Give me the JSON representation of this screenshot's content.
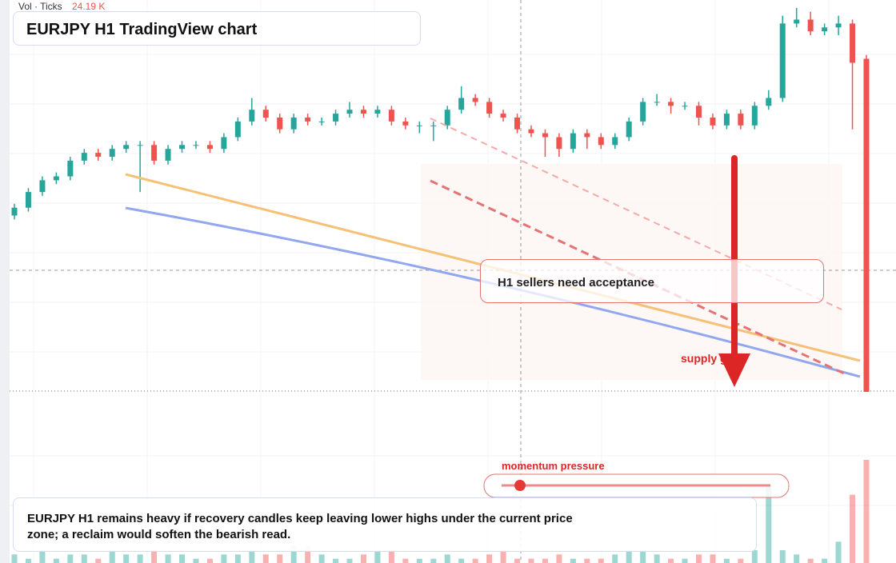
{
  "chart_data": {
    "type": "candlestick",
    "title": "EURJPY H1 TradingView chart",
    "volume_name": "Vol · Ticks",
    "volume_readout": "24.19 K",
    "annotation": "H1 sellers need acceptance",
    "zone_label": "supply gate",
    "slider_label": "momentum pressure",
    "summary": "EURJPY H1 remains heavy if recovery candles keep leaving lower highs under the current price zone; a reclaim would soften the bearish read.",
    "up_color": "#26a69a",
    "down_color": "#ef5350",
    "ylim": [
      0,
      100
    ],
    "volume_ylim": [
      0,
      30
    ],
    "open": [
      45,
      47,
      51,
      54,
      55,
      59,
      61,
      60,
      62,
      63,
      63,
      59,
      62,
      63,
      63,
      62,
      65,
      69,
      72,
      70,
      67,
      70,
      69,
      69,
      71,
      72,
      71,
      72,
      69,
      68,
      68,
      68,
      72,
      75,
      74,
      71,
      70,
      67,
      66,
      65,
      62,
      66,
      65,
      63,
      65,
      69,
      74,
      74,
      73,
      73,
      70,
      68,
      71,
      68,
      73,
      75,
      94,
      95,
      92,
      93,
      94,
      85
    ],
    "high": [
      48,
      52,
      55,
      56,
      60,
      62,
      62,
      63,
      64,
      64,
      64,
      63,
      64,
      64,
      64,
      66,
      70,
      75,
      73,
      71,
      71,
      71,
      70,
      72,
      74,
      73,
      73,
      73,
      70,
      69,
      69,
      73,
      78,
      76,
      75,
      72,
      71,
      68,
      67,
      66,
      67,
      67,
      66,
      66,
      70,
      75,
      76,
      75,
      74,
      74,
      71,
      72,
      72,
      74,
      77,
      96,
      98,
      97,
      94,
      96,
      95,
      86
    ],
    "low": [
      44,
      46,
      50,
      53,
      54,
      58,
      59,
      59,
      61,
      51,
      58,
      58,
      61,
      62,
      61,
      61,
      64,
      68,
      69,
      66,
      66,
      68,
      68,
      68,
      70,
      70,
      70,
      68,
      67,
      66,
      64,
      67,
      71,
      73,
      70,
      69,
      66,
      65,
      60,
      60,
      61,
      62,
      62,
      62,
      64,
      68,
      73,
      71,
      72,
      68,
      67,
      67,
      67,
      67,
      72,
      74,
      93,
      91,
      91,
      91,
      67,
      0
    ],
    "close": [
      47,
      51,
      54,
      55,
      59,
      61,
      60,
      62,
      63,
      63,
      59,
      62,
      63,
      63,
      62,
      65,
      69,
      72,
      70,
      67,
      70,
      69,
      69,
      71,
      72,
      71,
      72,
      69,
      68,
      68,
      68,
      72,
      75,
      74,
      71,
      70,
      67,
      66,
      65,
      62,
      66,
      65,
      63,
      65,
      69,
      74,
      74,
      73,
      73,
      70,
      68,
      71,
      68,
      73,
      75,
      94,
      95,
      92,
      93,
      94,
      84,
      0
    ],
    "volume": [
      2,
      1,
      3,
      1,
      2,
      2,
      1,
      3,
      2,
      2,
      3,
      2,
      2,
      1,
      1,
      2,
      2,
      3,
      2,
      2,
      4,
      4,
      2,
      1,
      1,
      2,
      3,
      3,
      1,
      1,
      1,
      2,
      1,
      1,
      2,
      3,
      1,
      1,
      1,
      2,
      1,
      1,
      1,
      2,
      3,
      3,
      2,
      1,
      1,
      2,
      2,
      1,
      1,
      3,
      18,
      3,
      2,
      1,
      1,
      5,
      16,
      24.19
    ]
  }
}
